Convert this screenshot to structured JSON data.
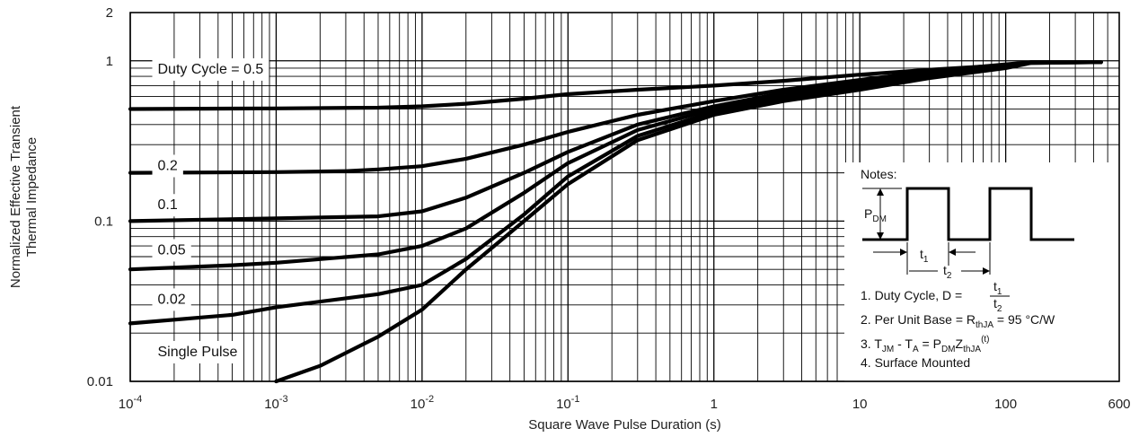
{
  "chart_data": {
    "type": "line",
    "xlabel": "Square Wave Pulse Duration (s)",
    "ylabel_lines": [
      "Normalized Effective Transient",
      "Thermal Impedance"
    ],
    "x_scale": "log",
    "y_scale": "log",
    "xlim": [
      0.0001,
      600
    ],
    "ylim": [
      0.01,
      2
    ],
    "grid": true,
    "x_ticks": [
      {
        "v": 0.0001,
        "base": "10",
        "exp": "-4"
      },
      {
        "v": 0.001,
        "base": "10",
        "exp": "-3"
      },
      {
        "v": 0.01,
        "base": "10",
        "exp": "-2"
      },
      {
        "v": 0.1,
        "base": "10",
        "exp": "-1"
      },
      {
        "v": 1,
        "base": "1",
        "exp": ""
      },
      {
        "v": 10,
        "base": "10",
        "exp": ""
      },
      {
        "v": 100,
        "base": "100",
        "exp": ""
      },
      {
        "v": 600,
        "base": "600",
        "exp": ""
      }
    ],
    "y_ticks": [
      {
        "v": 2,
        "label": "2"
      },
      {
        "v": 1,
        "label": "1"
      },
      {
        "v": 0.1,
        "label": "0.1"
      },
      {
        "v": 0.01,
        "label": "0.01"
      }
    ],
    "series": [
      {
        "name": "Duty Cycle = 0.5",
        "label_anchor": [
          0.00013,
          0.9
        ],
        "x": [
          0.0001,
          0.001,
          0.005,
          0.01,
          0.02,
          0.05,
          0.1,
          0.3,
          1,
          3,
          10,
          30,
          100,
          150,
          450
        ],
        "y": [
          0.5,
          0.505,
          0.51,
          0.52,
          0.54,
          0.58,
          0.62,
          0.66,
          0.7,
          0.75,
          0.82,
          0.88,
          0.94,
          0.97,
          0.98
        ]
      },
      {
        "name": "0.2",
        "label_anchor": [
          0.00013,
          0.225
        ],
        "x": [
          0.0001,
          0.001,
          0.003,
          0.005,
          0.01,
          0.02,
          0.05,
          0.1,
          0.3,
          1,
          3,
          10,
          30,
          100,
          150,
          450
        ],
        "y": [
          0.2,
          0.202,
          0.205,
          0.21,
          0.22,
          0.245,
          0.3,
          0.36,
          0.46,
          0.56,
          0.66,
          0.76,
          0.86,
          0.95,
          0.98,
          0.98
        ]
      },
      {
        "name": "0.1",
        "label_anchor": [
          0.00013,
          0.128
        ],
        "x": [
          0.0001,
          0.001,
          0.005,
          0.01,
          0.02,
          0.05,
          0.1,
          0.3,
          1,
          3,
          10,
          30,
          100,
          150,
          450
        ],
        "y": [
          0.1,
          0.104,
          0.107,
          0.115,
          0.14,
          0.2,
          0.27,
          0.4,
          0.52,
          0.63,
          0.73,
          0.84,
          0.94,
          0.98,
          0.98
        ]
      },
      {
        "name": "0.05",
        "label_anchor": [
          0.00013,
          0.067
        ],
        "x": [
          0.0001,
          0.0005,
          0.001,
          0.005,
          0.01,
          0.02,
          0.05,
          0.1,
          0.3,
          1,
          3,
          10,
          30,
          100,
          150,
          450
        ],
        "y": [
          0.05,
          0.053,
          0.055,
          0.062,
          0.07,
          0.09,
          0.15,
          0.23,
          0.37,
          0.5,
          0.6,
          0.7,
          0.82,
          0.93,
          0.98,
          0.98
        ]
      },
      {
        "name": "0.02",
        "label_anchor": [
          0.00013,
          0.033
        ],
        "x": [
          0.0001,
          0.0005,
          0.001,
          0.005,
          0.01,
          0.02,
          0.05,
          0.1,
          0.3,
          1,
          3,
          10,
          30,
          100,
          150,
          450
        ],
        "y": [
          0.023,
          0.026,
          0.029,
          0.035,
          0.04,
          0.058,
          0.11,
          0.19,
          0.34,
          0.48,
          0.58,
          0.68,
          0.8,
          0.92,
          0.98,
          0.98
        ]
      },
      {
        "name": "Single Pulse",
        "label_anchor": [
          0.00013,
          0.0155
        ],
        "x": [
          0.001,
          0.002,
          0.005,
          0.01,
          0.02,
          0.05,
          0.1,
          0.3,
          1,
          3,
          10,
          30,
          100,
          150,
          450
        ],
        "y": [
          0.01,
          0.0125,
          0.019,
          0.028,
          0.05,
          0.1,
          0.17,
          0.32,
          0.46,
          0.56,
          0.66,
          0.78,
          0.9,
          0.97,
          0.98
        ]
      }
    ]
  },
  "notes": {
    "title": "Notes:",
    "pdm": {
      "main": "P",
      "sub": "DM"
    },
    "t1": {
      "main": "t",
      "sub": "1"
    },
    "t2": {
      "main": "t",
      "sub": "2"
    },
    "line1_prefix": "1. Duty Cycle, D =",
    "frac_num": {
      "main": "t",
      "sub": "1"
    },
    "frac_den": {
      "main": "t",
      "sub": "2"
    },
    "line2_prefix": "2. Per Unit Base = R",
    "line2_sub": "thJA",
    "line2_suffix": " = 95 °C/W",
    "line3_a": "3. T",
    "line3_a_sub": "JM",
    "line3_b": " - T",
    "line3_b_sub": "A",
    "line3_c": " = P",
    "line3_c_sub": "DM",
    "line3_d": "Z",
    "line3_d_sub": "thJA",
    "line3_sup": "(t)",
    "line4": "4. Surface Mounted"
  }
}
